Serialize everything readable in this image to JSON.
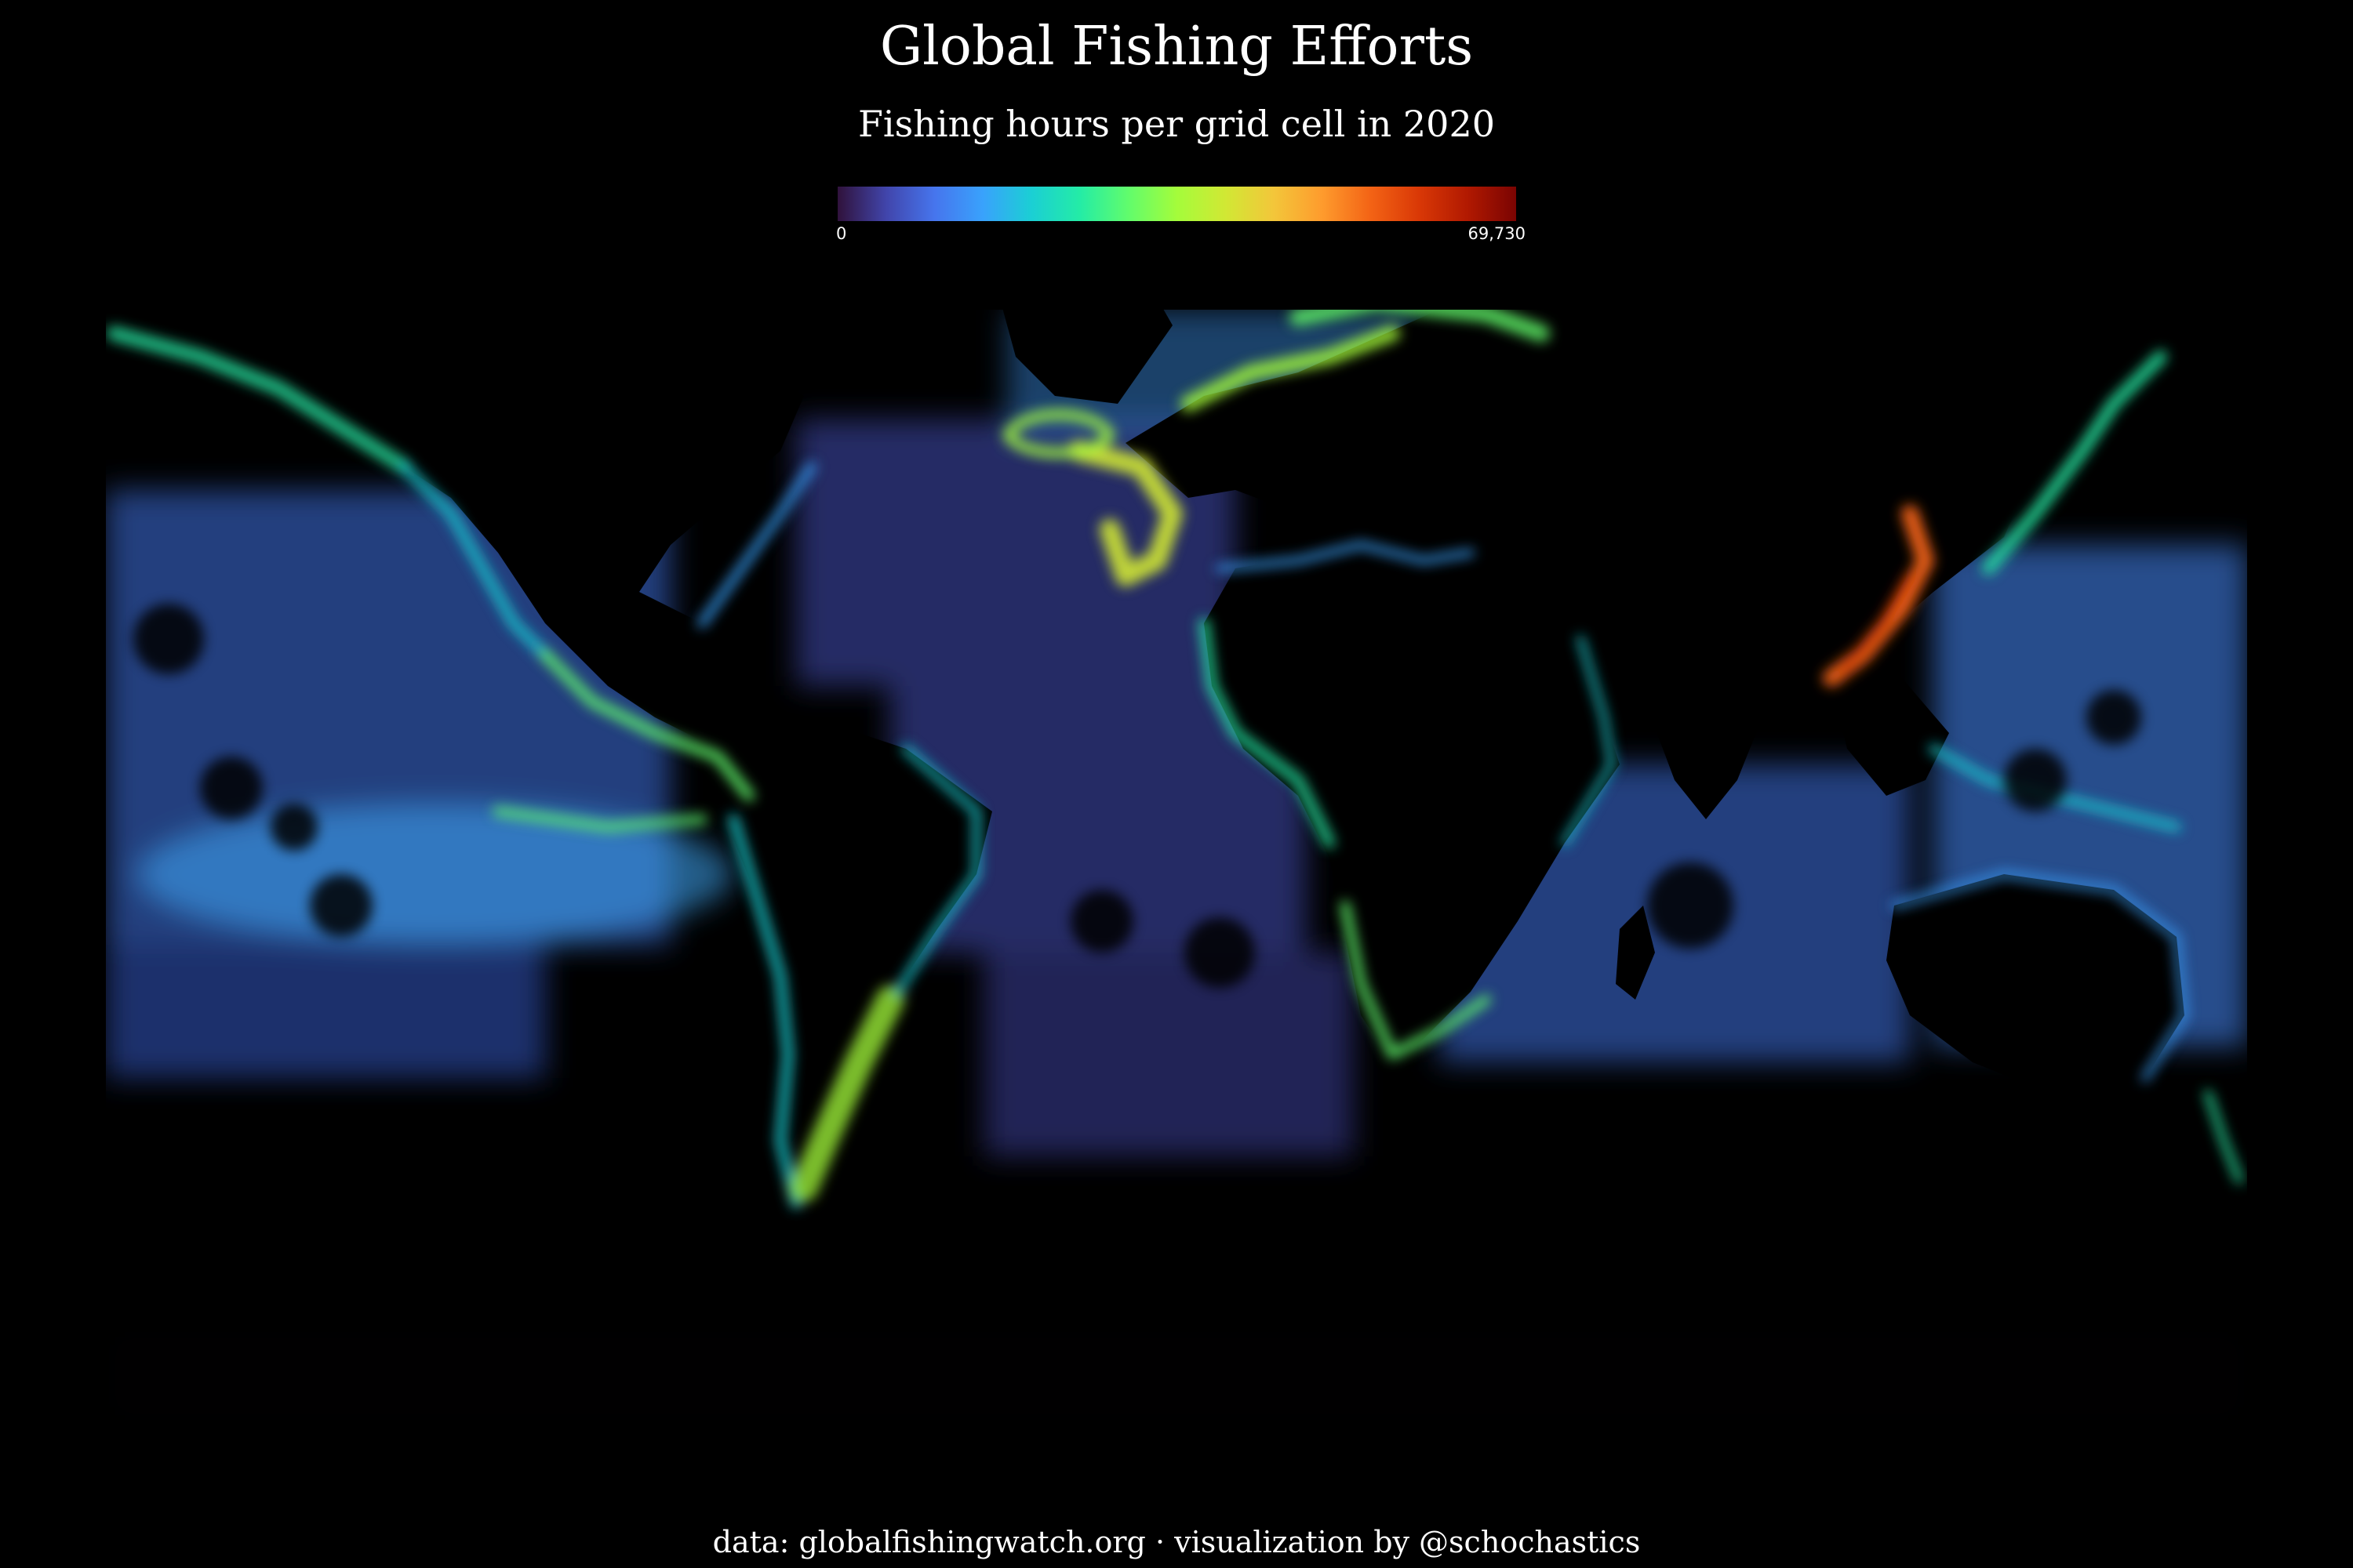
{
  "header": {
    "title": "Global Fishing Efforts",
    "subtitle": "Fishing hours per grid cell in 2020"
  },
  "legend": {
    "min_label": "0",
    "max_label": "69,730",
    "colors": [
      "#30123b",
      "#4145ab",
      "#4675ed",
      "#39a2fc",
      "#1bcfd4",
      "#24eca6",
      "#61fc6c",
      "#a4fc3b",
      "#d1e834",
      "#f3c63a",
      "#fe9b2d",
      "#f36315",
      "#d93806",
      "#b11901",
      "#7a0402"
    ]
  },
  "footer": {
    "caption": "data: globalfishingwatch.org · visualization by @schochastics"
  },
  "map": {
    "projection": "equirectangular",
    "background_color": "#000000",
    "land_color": "#000000"
  }
}
